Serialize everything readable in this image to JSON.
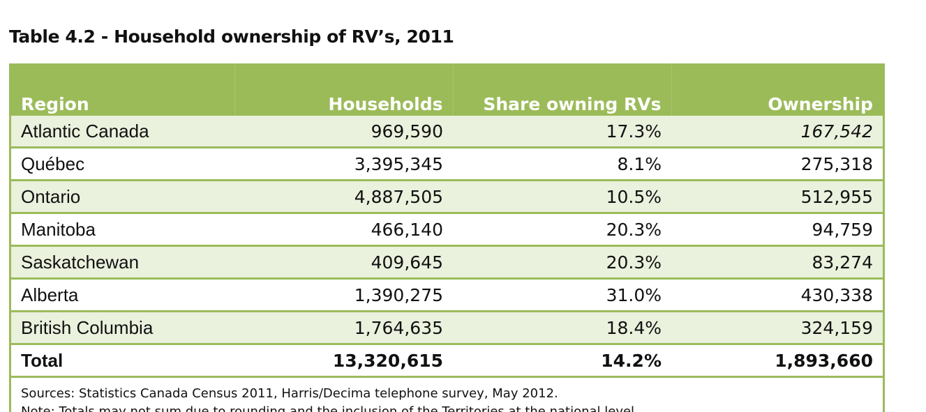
{
  "table": {
    "title": "Table 4.2 - Household ownership of RV’s, 2011",
    "headers": [
      "Region",
      "Households",
      "Share owning RVs",
      "Ownership"
    ],
    "rows": [
      {
        "region": "Atlantic Canada",
        "households": "969,590",
        "share": "17.3%",
        "ownership": "167,542"
      },
      {
        "region": "Québec",
        "households": "3,395,345",
        "share": "8.1%",
        "ownership": "275,318"
      },
      {
        "region": "Ontario",
        "households": "4,887,505",
        "share": "10.5%",
        "ownership": "512,955"
      },
      {
        "region": "Manitoba",
        "households": "466,140",
        "share": "20.3%",
        "ownership": "94,759"
      },
      {
        "region": "Saskatchewan",
        "households": "409,645",
        "share": "20.3%",
        "ownership": "83,274"
      },
      {
        "region": "Alberta",
        "households": "1,390,275",
        "share": "31.0%",
        "ownership": "430,338"
      },
      {
        "region": "British Columbia",
        "households": "1,764,635",
        "share": "18.4%",
        "ownership": "324,159"
      }
    ],
    "total": {
      "region": "Total",
      "households": "13,320,615",
      "share": "14.2%",
      "ownership": "1,893,660"
    },
    "sources": "Sources: Statistics Canada Census 2011, Harris/Decima telephone survey, May 2012.",
    "note": "Note: Totals may not sum due to rounding and the inclusion of the Territories at the national level."
  },
  "colors": {
    "accent": "#9bbb59",
    "band": "#eaf1dd"
  }
}
